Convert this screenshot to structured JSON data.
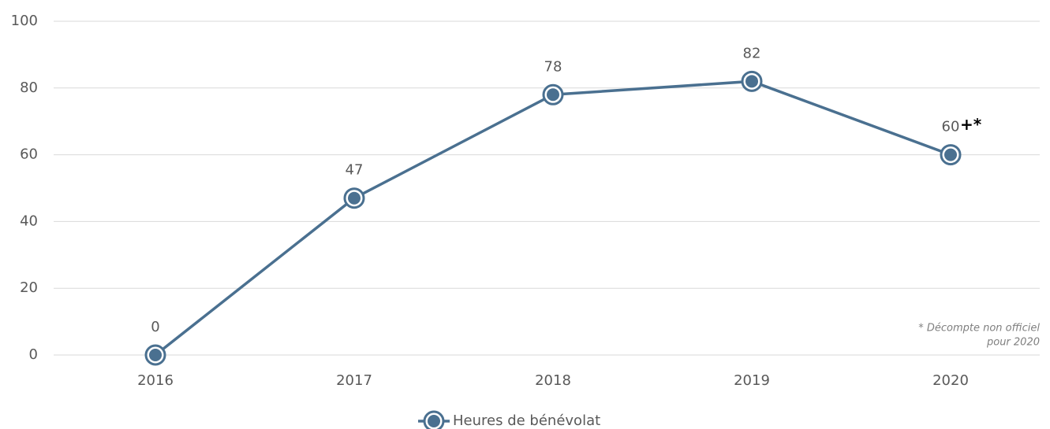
{
  "chart_data": {
    "type": "line",
    "categories": [
      "2016",
      "2017",
      "2018",
      "2019",
      "2020"
    ],
    "series": [
      {
        "name": "Heures de bénévolat",
        "color": "#4a7090",
        "values": [
          0,
          47,
          78,
          82,
          60
        ]
      }
    ],
    "ylim": [
      0,
      100
    ],
    "yticks": [
      0,
      20,
      40,
      60,
      80,
      100
    ],
    "grid": true,
    "legend": "bottom",
    "annotations": [
      "+*"
    ],
    "note": [
      "* Décompte non officiel",
      "pour 2020"
    ]
  }
}
